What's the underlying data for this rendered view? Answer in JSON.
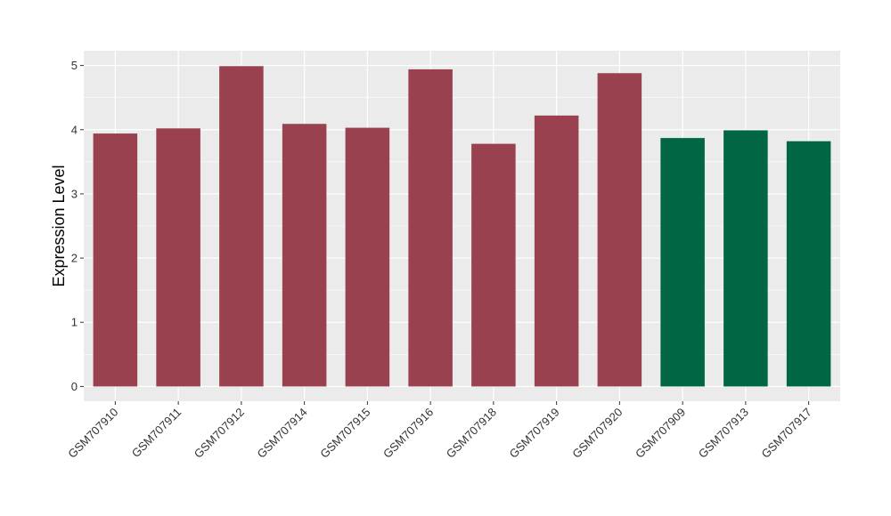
{
  "chart_data": {
    "type": "bar",
    "title": "",
    "xlabel": "",
    "ylabel": "Expression Level",
    "ylim": [
      -0.23,
      5.23
    ],
    "yticks": [
      0,
      1,
      2,
      3,
      4,
      5
    ],
    "grid": true,
    "legend": "none",
    "categories": [
      "GSM707910",
      "GSM707911",
      "GSM707912",
      "GSM707914",
      "GSM707915",
      "GSM707916",
      "GSM707918",
      "GSM707919",
      "GSM707920",
      "GSM707909",
      "GSM707913",
      "GSM707917"
    ],
    "values": [
      3.94,
      4.02,
      4.99,
      4.09,
      4.03,
      4.94,
      3.78,
      4.22,
      4.88,
      3.87,
      3.99,
      3.82
    ],
    "group_colors": [
      "#99414f",
      "#99414f",
      "#99414f",
      "#99414f",
      "#99414f",
      "#99414f",
      "#99414f",
      "#99414f",
      "#99414f",
      "#006643",
      "#006643",
      "#006643"
    ],
    "panel_background": "#ebebeb",
    "grid_color": "#ffffff"
  }
}
